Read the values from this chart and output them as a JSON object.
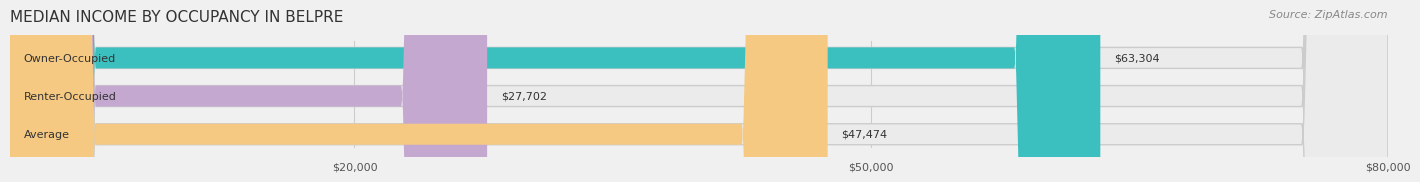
{
  "title": "MEDIAN INCOME BY OCCUPANCY IN BELPRE",
  "source": "Source: ZipAtlas.com",
  "categories": [
    "Owner-Occupied",
    "Renter-Occupied",
    "Average"
  ],
  "values": [
    63304,
    27702,
    47474
  ],
  "labels": [
    "$63,304",
    "$27,702",
    "$47,474"
  ],
  "bar_colors": [
    "#3bbfbf",
    "#c4a8d0",
    "#f5c982"
  ],
  "bar_edge_colors": [
    "#3bbfbf",
    "#c4a8d0",
    "#f5c982"
  ],
  "xlim": [
    0,
    80000
  ],
  "xticks": [
    20000,
    50000,
    80000
  ],
  "xticklabels": [
    "$20,000",
    "$50,000",
    "$80,000"
  ],
  "title_fontsize": 11,
  "source_fontsize": 8,
  "label_fontsize": 8,
  "category_fontsize": 8,
  "background_color": "#f0f0f0",
  "bar_background_color": "#e8e8e8",
  "bar_height": 0.55
}
